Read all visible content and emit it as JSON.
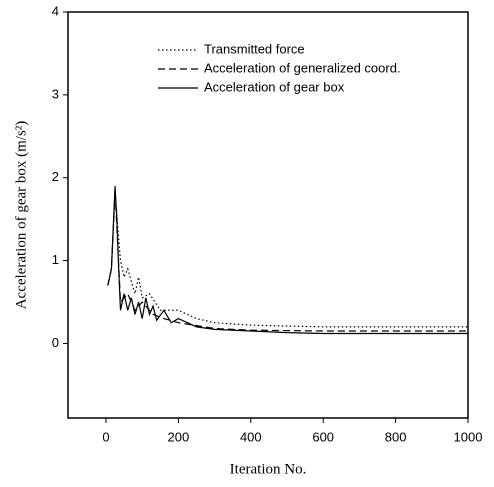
{
  "chart_data": {
    "type": "line",
    "xlabel": "Iteration No.",
    "ylabel": "Acceleration of gear box (m/s²)",
    "xlim": [
      -105,
      1000
    ],
    "xticks": [
      0,
      200,
      400,
      600,
      800,
      1000
    ],
    "ylim": [
      -0.9,
      4
    ],
    "yticks": [
      0,
      1,
      2,
      3,
      4
    ],
    "legend": "upper right",
    "series": [
      {
        "name": "Transmitted force",
        "color": "#000000",
        "style": "dotted",
        "x": [
          5,
          15,
          25,
          40,
          50,
          60,
          80,
          90,
          100,
          120,
          150,
          200,
          250,
          300,
          400,
          600,
          800,
          1000
        ],
        "values": [
          0.7,
          0.9,
          1.8,
          1.0,
          0.8,
          0.9,
          0.6,
          0.8,
          0.55,
          0.6,
          0.4,
          0.4,
          0.3,
          0.25,
          0.22,
          0.2,
          0.2,
          0.2
        ]
      },
      {
        "name": "Acceleration of generalized coord.",
        "color": "#000000",
        "style": "dashed",
        "x": [
          5,
          15,
          25,
          40,
          60,
          80,
          100,
          130,
          160,
          200,
          300,
          400,
          600,
          1000
        ],
        "values": [
          0.7,
          0.9,
          1.85,
          0.5,
          0.6,
          0.4,
          0.5,
          0.35,
          0.3,
          0.25,
          0.18,
          0.16,
          0.15,
          0.15
        ]
      },
      {
        "name": "Acceleration of gear box",
        "color": "#000000",
        "style": "solid",
        "x": [
          5,
          15,
          25,
          30,
          35,
          40,
          50,
          60,
          70,
          80,
          90,
          100,
          110,
          120,
          130,
          140,
          160,
          180,
          200,
          250,
          300,
          400,
          500,
          600,
          800,
          1000
        ],
        "values": [
          0.7,
          0.9,
          1.9,
          1.5,
          0.9,
          0.4,
          0.6,
          0.4,
          0.55,
          0.35,
          0.5,
          0.3,
          0.55,
          0.35,
          0.45,
          0.28,
          0.4,
          0.25,
          0.3,
          0.2,
          0.17,
          0.15,
          0.13,
          0.12,
          0.12,
          0.12
        ]
      }
    ]
  }
}
